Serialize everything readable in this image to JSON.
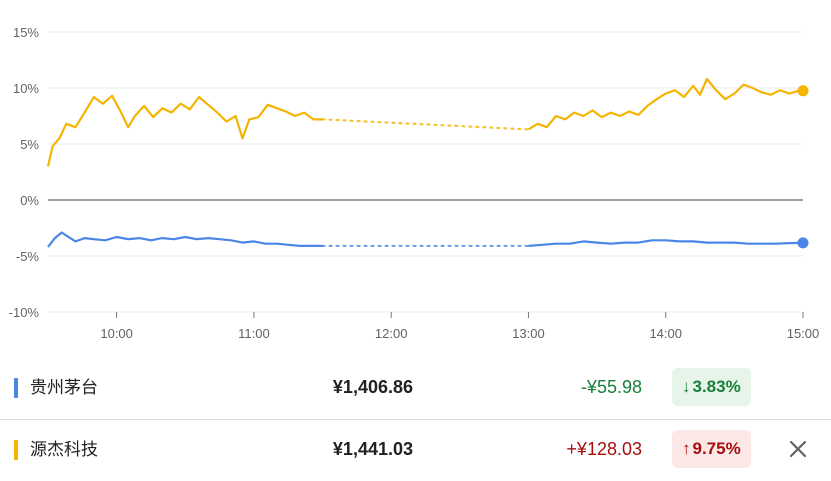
{
  "chart_data": {
    "type": "line",
    "x_ticks": [
      "10:00",
      "11:00",
      "12:00",
      "13:00",
      "14:00",
      "15:00"
    ],
    "y_ticks": [
      "15%",
      "10%",
      "5%",
      "0%",
      "-5%",
      "-10%"
    ],
    "ylim": [
      -10,
      15
    ],
    "xlim": [
      "09:30",
      "15:00"
    ],
    "grid": true,
    "series": [
      {
        "name": "源杰科技",
        "color": "#f4b400",
        "points": [
          [
            "09:30",
            3.0
          ],
          [
            "09:32",
            4.8
          ],
          [
            "09:35",
            5.5
          ],
          [
            "09:38",
            6.8
          ],
          [
            "09:42",
            6.5
          ],
          [
            "09:46",
            7.8
          ],
          [
            "09:50",
            9.2
          ],
          [
            "09:54",
            8.6
          ],
          [
            "09:58",
            9.3
          ],
          [
            "10:02",
            7.8
          ],
          [
            "10:05",
            6.5
          ],
          [
            "10:08",
            7.5
          ],
          [
            "10:12",
            8.4
          ],
          [
            "10:16",
            7.4
          ],
          [
            "10:20",
            8.2
          ],
          [
            "10:24",
            7.8
          ],
          [
            "10:28",
            8.6
          ],
          [
            "10:32",
            8.1
          ],
          [
            "10:36",
            9.2
          ],
          [
            "10:40",
            8.5
          ],
          [
            "10:44",
            7.8
          ],
          [
            "10:48",
            7.0
          ],
          [
            "10:52",
            7.5
          ],
          [
            "10:55",
            5.5
          ],
          [
            "10:58",
            7.2
          ],
          [
            "11:02",
            7.4
          ],
          [
            "11:06",
            8.5
          ],
          [
            "11:10",
            8.2
          ],
          [
            "11:14",
            7.9
          ],
          [
            "11:18",
            7.5
          ],
          [
            "11:22",
            7.8
          ],
          [
            "11:26",
            7.2
          ],
          [
            "11:30",
            7.2
          ]
        ],
        "points_pm": [
          [
            "13:00",
            6.3
          ],
          [
            "13:04",
            6.8
          ],
          [
            "13:08",
            6.5
          ],
          [
            "13:12",
            7.5
          ],
          [
            "13:16",
            7.2
          ],
          [
            "13:20",
            7.8
          ],
          [
            "13:24",
            7.5
          ],
          [
            "13:28",
            8.0
          ],
          [
            "13:32",
            7.4
          ],
          [
            "13:36",
            7.8
          ],
          [
            "13:40",
            7.5
          ],
          [
            "13:44",
            7.9
          ],
          [
            "13:48",
            7.6
          ],
          [
            "13:52",
            8.4
          ],
          [
            "13:56",
            9.0
          ],
          [
            "14:00",
            9.5
          ],
          [
            "14:04",
            9.8
          ],
          [
            "14:08",
            9.2
          ],
          [
            "14:12",
            10.2
          ],
          [
            "14:15",
            9.4
          ],
          [
            "14:18",
            10.8
          ],
          [
            "14:22",
            9.8
          ],
          [
            "14:26",
            9.0
          ],
          [
            "14:30",
            9.5
          ],
          [
            "14:34",
            10.3
          ],
          [
            "14:38",
            10.0
          ],
          [
            "14:42",
            9.6
          ],
          [
            "14:46",
            9.4
          ],
          [
            "14:50",
            9.8
          ],
          [
            "14:54",
            9.5
          ],
          [
            "14:58",
            9.75
          ],
          [
            "15:00",
            9.75
          ]
        ]
      },
      {
        "name": "贵州茅台",
        "color": "#4a86e8",
        "points": [
          [
            "09:30",
            -4.2
          ],
          [
            "09:33",
            -3.4
          ],
          [
            "09:36",
            -2.9
          ],
          [
            "09:39",
            -3.3
          ],
          [
            "09:42",
            -3.7
          ],
          [
            "09:46",
            -3.4
          ],
          [
            "09:50",
            -3.5
          ],
          [
            "09:55",
            -3.6
          ],
          [
            "10:00",
            -3.3
          ],
          [
            "10:05",
            -3.5
          ],
          [
            "10:10",
            -3.4
          ],
          [
            "10:15",
            -3.6
          ],
          [
            "10:20",
            -3.4
          ],
          [
            "10:25",
            -3.5
          ],
          [
            "10:30",
            -3.3
          ],
          [
            "10:35",
            -3.5
          ],
          [
            "10:40",
            -3.4
          ],
          [
            "10:45",
            -3.5
          ],
          [
            "10:50",
            -3.6
          ],
          [
            "10:55",
            -3.8
          ],
          [
            "11:00",
            -3.7
          ],
          [
            "11:05",
            -3.9
          ],
          [
            "11:10",
            -3.9
          ],
          [
            "11:15",
            -4.0
          ],
          [
            "11:20",
            -4.1
          ],
          [
            "11:25",
            -4.1
          ],
          [
            "11:30",
            -4.1
          ]
        ],
        "points_pm": [
          [
            "13:00",
            -4.1
          ],
          [
            "13:06",
            -4.0
          ],
          [
            "13:12",
            -3.9
          ],
          [
            "13:18",
            -3.9
          ],
          [
            "13:24",
            -3.7
          ],
          [
            "13:30",
            -3.8
          ],
          [
            "13:36",
            -3.9
          ],
          [
            "13:42",
            -3.8
          ],
          [
            "13:48",
            -3.8
          ],
          [
            "13:54",
            -3.6
          ],
          [
            "14:00",
            -3.6
          ],
          [
            "14:06",
            -3.7
          ],
          [
            "14:12",
            -3.7
          ],
          [
            "14:18",
            -3.8
          ],
          [
            "14:24",
            -3.8
          ],
          [
            "14:30",
            -3.8
          ],
          [
            "14:36",
            -3.9
          ],
          [
            "14:42",
            -3.9
          ],
          [
            "14:48",
            -3.9
          ],
          [
            "14:54",
            -3.85
          ],
          [
            "15:00",
            -3.83
          ]
        ]
      }
    ]
  },
  "stocks": [
    {
      "name": "贵州茅台",
      "price": "¥1,406.86",
      "change": "-¥55.98",
      "pct": "3.83%",
      "arrow": "↓",
      "bar_color": "#4a86e8",
      "change_color": "#188038",
      "badge_bg": "#e6f4ea",
      "badge_color": "#188038"
    },
    {
      "name": "源杰科技",
      "price": "¥1,441.03",
      "change": "+¥128.03",
      "pct": "9.75%",
      "arrow": "↑",
      "bar_color": "#f4b400",
      "change_color": "#a50e0e",
      "badge_bg": "#fce8e6",
      "badge_color": "#a50e0e"
    }
  ],
  "close_icon": "close-icon"
}
